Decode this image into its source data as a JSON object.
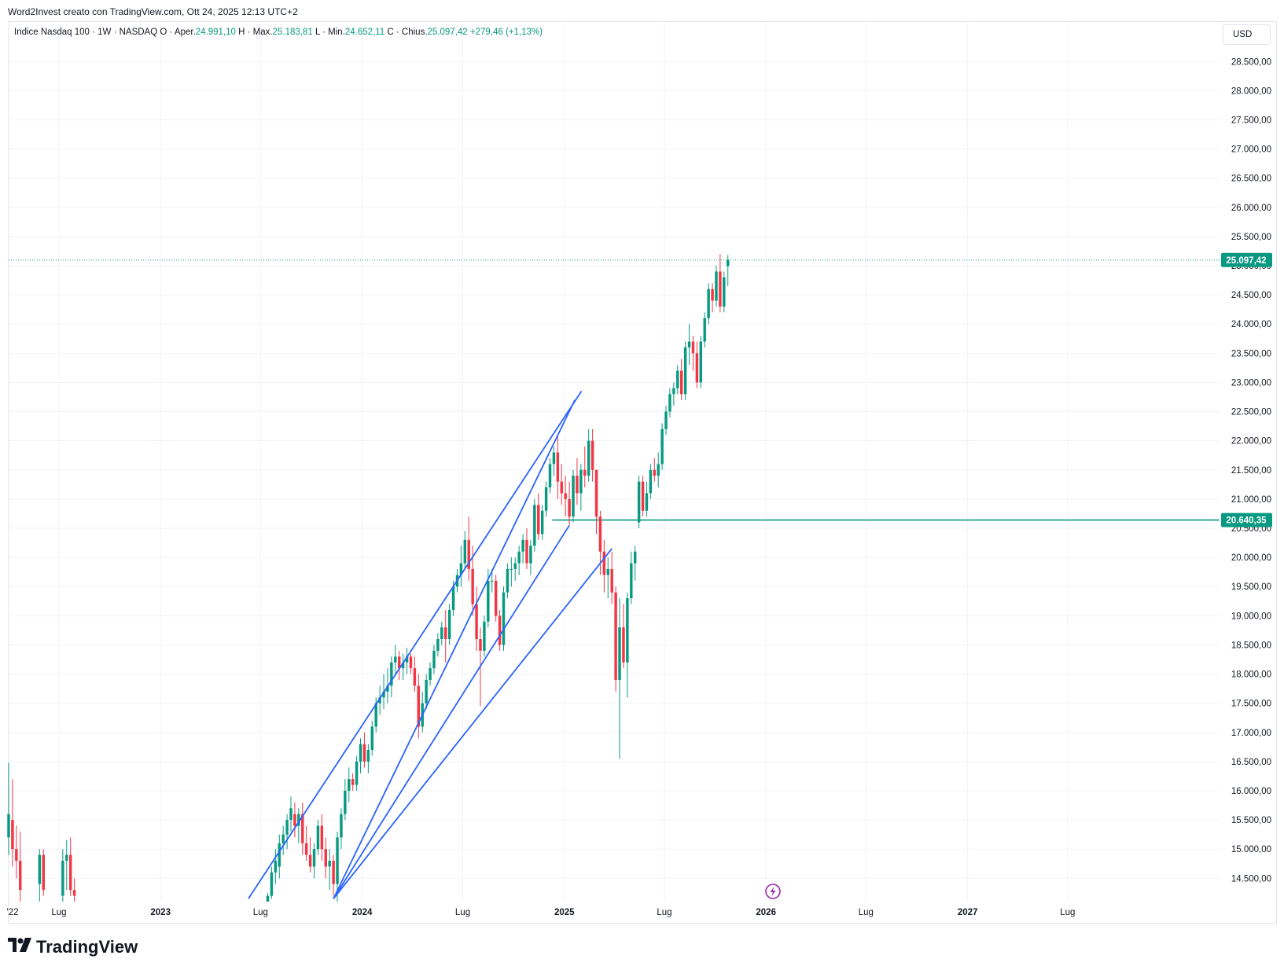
{
  "header": {
    "attribution": "Word2Invest creato con TradingView.com, Ott 24, 2025 12:13 UTC+2"
  },
  "legend": {
    "symbol": "Indice Nasdaq 100 · 1W · NASDAQ",
    "open_label": "O · Aper.",
    "open_value": "24.991,10",
    "high_label": "H · Max.",
    "high_value": "25.183,81",
    "low_label": "L · Min.",
    "low_value": "24.652,11",
    "close_label": "C · Chius.",
    "close_value": "25.097,42",
    "change": "+279,46 (+1,13%)"
  },
  "currency_button": "USD",
  "brand": "TradingView",
  "colors": {
    "up": "#089981",
    "down": "#f23645",
    "trendline": "#2962ff",
    "level": "#089981",
    "grid": "#f0f3fa",
    "text": "#131722",
    "icon": "#9c27b0"
  },
  "chart_data": {
    "type": "candlestick",
    "timeframe": "1W",
    "xlim": [
      "2022-04-01",
      "2028-04-01"
    ],
    "ylim": [
      14100,
      28800
    ],
    "y_ticks": [
      14500,
      15000,
      15500,
      16000,
      16500,
      17000,
      17500,
      18000,
      18500,
      19000,
      19500,
      20000,
      20500,
      21000,
      21500,
      22000,
      22500,
      23000,
      23500,
      24000,
      24500,
      25000,
      25500,
      26000,
      26500,
      27000,
      27500,
      28000,
      28500
    ],
    "y_tick_labels": [
      "14.500,00",
      "15.000,00",
      "15.500,00",
      "16.000,00",
      "16.500,00",
      "17.000,00",
      "17.500,00",
      "18.000,00",
      "18.500,00",
      "19.000,00",
      "19.500,00",
      "20.000,00",
      "20.500,00",
      "21.000,00",
      "21.500,00",
      "22.000,00",
      "22.500,00",
      "23.000,00",
      "23.500,00",
      "24.000,00",
      "24.500,00",
      "25.000,00",
      "25.500,00",
      "26.000,00",
      "26.500,00",
      "27.000,00",
      "27.500,00",
      "28.000,00",
      "28.500,00"
    ],
    "x_ticks": [
      {
        "date": "2022-04-01",
        "label": "'22",
        "bold": false
      },
      {
        "date": "2022-07-01",
        "label": "Lug",
        "bold": false
      },
      {
        "date": "2023-01-01",
        "label": "2023",
        "bold": true
      },
      {
        "date": "2023-07-01",
        "label": "Lug",
        "bold": false
      },
      {
        "date": "2024-01-01",
        "label": "2024",
        "bold": true
      },
      {
        "date": "2024-07-01",
        "label": "Lug",
        "bold": false
      },
      {
        "date": "2025-01-01",
        "label": "2025",
        "bold": true
      },
      {
        "date": "2025-07-01",
        "label": "Lug",
        "bold": false
      },
      {
        "date": "2026-01-01",
        "label": "2026",
        "bold": true
      },
      {
        "date": "2026-07-01",
        "label": "Lug",
        "bold": false
      },
      {
        "date": "2027-01-01",
        "label": "2027",
        "bold": true
      },
      {
        "date": "2027-07-01",
        "label": "Lug",
        "bold": false
      }
    ],
    "candles": [
      [
        "2022-04-01",
        15200,
        16480,
        14900,
        15600
      ],
      [
        "2022-04-08",
        15500,
        16200,
        14700,
        15000
      ],
      [
        "2022-04-15",
        15000,
        15400,
        14500,
        14800
      ],
      [
        "2022-04-22",
        14800,
        15300,
        14100,
        14300
      ],
      [
        "2022-05-27",
        14400,
        15000,
        14100,
        14900
      ],
      [
        "2022-06-03",
        14900,
        15000,
        14200,
        14300
      ],
      [
        "2022-07-08",
        14200,
        15000,
        14100,
        14800
      ],
      [
        "2022-07-15",
        14800,
        15150,
        14300,
        14900
      ],
      [
        "2022-07-22",
        14900,
        15200,
        14200,
        14300
      ],
      [
        "2022-07-29",
        14300,
        14500,
        14100,
        14200
      ],
      [
        "2023-07-14",
        14100,
        14250,
        14100,
        14200
      ],
      [
        "2023-07-21",
        14200,
        14700,
        14150,
        14600
      ],
      [
        "2023-07-28",
        14600,
        15000,
        14400,
        14800
      ],
      [
        "2023-08-04",
        14700,
        15250,
        14500,
        15100
      ],
      [
        "2023-08-11",
        15100,
        15400,
        14900,
        15250
      ],
      [
        "2023-08-18",
        15250,
        15600,
        15000,
        15500
      ],
      [
        "2023-08-25",
        15500,
        15900,
        15300,
        15700
      ],
      [
        "2023-09-01",
        15600,
        15800,
        15200,
        15400
      ],
      [
        "2023-09-08",
        15400,
        15700,
        15100,
        15600
      ],
      [
        "2023-09-15",
        15600,
        15800,
        14900,
        15100
      ],
      [
        "2023-09-22",
        15100,
        15400,
        14800,
        14900
      ],
      [
        "2023-09-29",
        14900,
        15200,
        14600,
        14700
      ],
      [
        "2023-10-06",
        14700,
        15100,
        14500,
        15000
      ],
      [
        "2023-10-13",
        15000,
        15500,
        14900,
        15400
      ],
      [
        "2023-10-20",
        15400,
        15600,
        14800,
        15000
      ],
      [
        "2023-10-27",
        15000,
        15200,
        14500,
        14700
      ],
      [
        "2023-11-03",
        14700,
        15000,
        14300,
        14800
      ],
      [
        "2023-11-10",
        14800,
        14900,
        14200,
        14400
      ],
      [
        "2023-11-17",
        14400,
        15300,
        14100,
        15200
      ],
      [
        "2023-11-24",
        15200,
        15700,
        15000,
        15600
      ],
      [
        "2023-12-01",
        15600,
        16200,
        15500,
        16000
      ],
      [
        "2023-12-08",
        16000,
        16400,
        15800,
        16200
      ],
      [
        "2023-12-15",
        16200,
        16300,
        16000,
        16100
      ],
      [
        "2023-12-22",
        16100,
        16600,
        16000,
        16500
      ],
      [
        "2023-12-29",
        16500,
        16900,
        16300,
        16800
      ],
      [
        "2024-01-05",
        16800,
        17000,
        16400,
        16500
      ],
      [
        "2024-01-12",
        16500,
        16800,
        16300,
        16700
      ],
      [
        "2024-01-19",
        16700,
        17200,
        16600,
        17100
      ],
      [
        "2024-01-26",
        17100,
        17600,
        17000,
        17500
      ],
      [
        "2024-02-02",
        17500,
        17800,
        17300,
        17600
      ],
      [
        "2024-02-09",
        17600,
        18000,
        17400,
        17700
      ],
      [
        "2024-02-16",
        17700,
        18100,
        17500,
        17800
      ],
      [
        "2024-02-23",
        17800,
        18300,
        17600,
        18200
      ],
      [
        "2024-03-01",
        18200,
        18500,
        18000,
        18300
      ],
      [
        "2024-03-08",
        18300,
        18400,
        17900,
        18100
      ],
      [
        "2024-03-15",
        18100,
        18350,
        17900,
        18200
      ],
      [
        "2024-03-22",
        18200,
        18450,
        18000,
        18300
      ],
      [
        "2024-03-29",
        18300,
        18350,
        18000,
        18100
      ],
      [
        "2024-04-05",
        18100,
        18300,
        17700,
        17800
      ],
      [
        "2024-04-12",
        17800,
        18000,
        16900,
        17100
      ],
      [
        "2024-04-19",
        17100,
        17700,
        17000,
        17500
      ],
      [
        "2024-04-26",
        17500,
        18000,
        17400,
        17900
      ],
      [
        "2024-05-03",
        17900,
        18200,
        17800,
        18100
      ],
      [
        "2024-05-10",
        18100,
        18500,
        18000,
        18400
      ],
      [
        "2024-05-17",
        18400,
        18700,
        18300,
        18600
      ],
      [
        "2024-05-24",
        18600,
        18900,
        18500,
        18800
      ],
      [
        "2024-05-31",
        18800,
        19100,
        18200,
        18600
      ],
      [
        "2024-06-07",
        18600,
        19200,
        18500,
        19100
      ],
      [
        "2024-06-14",
        19100,
        19600,
        19000,
        19500
      ],
      [
        "2024-06-21",
        19500,
        19800,
        19400,
        19700
      ],
      [
        "2024-06-28",
        19700,
        20200,
        19500,
        19900
      ],
      [
        "2024-07-05",
        19900,
        20450,
        19800,
        20300
      ],
      [
        "2024-07-12",
        20300,
        20700,
        19600,
        19800
      ],
      [
        "2024-07-19",
        19800,
        20200,
        19000,
        19200
      ],
      [
        "2024-07-26",
        19200,
        19500,
        18400,
        18600
      ],
      [
        "2024-08-02",
        18600,
        18800,
        17450,
        18400
      ],
      [
        "2024-08-09",
        18400,
        19000,
        18300,
        18900
      ],
      [
        "2024-08-16",
        18900,
        19800,
        18800,
        19600
      ],
      [
        "2024-08-23",
        19600,
        19800,
        19400,
        19600
      ],
      [
        "2024-08-30",
        19600,
        19700,
        18900,
        19000
      ],
      [
        "2024-09-06",
        19000,
        19100,
        18400,
        18500
      ],
      [
        "2024-09-13",
        18500,
        19500,
        18400,
        19400
      ],
      [
        "2024-09-20",
        19400,
        19900,
        19300,
        19800
      ],
      [
        "2024-09-27",
        19800,
        20000,
        19500,
        19800
      ],
      [
        "2024-10-04",
        19800,
        20000,
        19600,
        19900
      ],
      [
        "2024-10-11",
        19900,
        20200,
        19700,
        20100
      ],
      [
        "2024-10-18",
        20100,
        20400,
        19900,
        20300
      ],
      [
        "2024-10-25",
        20300,
        20500,
        19800,
        19900
      ],
      [
        "2024-11-01",
        19900,
        20300,
        19700,
        20200
      ],
      [
        "2024-11-08",
        20200,
        21000,
        20100,
        20900
      ],
      [
        "2024-11-15",
        20900,
        21100,
        20300,
        20400
      ],
      [
        "2024-11-22",
        20400,
        20900,
        20300,
        20800
      ],
      [
        "2024-11-29",
        20800,
        21300,
        20700,
        21200
      ],
      [
        "2024-12-06",
        21200,
        21700,
        21100,
        21600
      ],
      [
        "2024-12-13",
        21600,
        21900,
        21400,
        21800
      ],
      [
        "2024-12-20",
        21800,
        22100,
        21000,
        21300
      ],
      [
        "2024-12-27",
        21300,
        21600,
        20900,
        21100
      ],
      [
        "2025-01-03",
        21100,
        21400,
        20700,
        21000
      ],
      [
        "2025-01-10",
        21000,
        21300,
        20550,
        20700
      ],
      [
        "2025-01-17",
        20700,
        21500,
        20600,
        21400
      ],
      [
        "2025-01-24",
        21400,
        21700,
        20900,
        21100
      ],
      [
        "2025-01-31",
        21100,
        21600,
        20800,
        21500
      ],
      [
        "2025-02-07",
        21500,
        21900,
        21200,
        21400
      ],
      [
        "2025-02-14",
        21400,
        22200,
        21300,
        22000
      ],
      [
        "2025-02-21",
        22000,
        22200,
        21300,
        21500
      ],
      [
        "2025-02-28",
        21500,
        21500,
        20400,
        20700
      ],
      [
        "2025-03-07",
        20700,
        20800,
        19700,
        20100
      ],
      [
        "2025-03-14",
        20100,
        20300,
        19400,
        19700
      ],
      [
        "2025-03-21",
        19700,
        20000,
        19300,
        19800
      ],
      [
        "2025-03-28",
        19800,
        20100,
        19200,
        19400
      ],
      [
        "2025-04-04",
        19400,
        19500,
        17700,
        17900
      ],
      [
        "2025-04-11",
        17900,
        19300,
        16550,
        18800
      ],
      [
        "2025-04-18",
        18800,
        19200,
        18100,
        18200
      ],
      [
        "2025-04-25",
        18200,
        19400,
        17600,
        19300
      ],
      [
        "2025-05-02",
        19300,
        20100,
        19200,
        19900
      ],
      [
        "2025-05-09",
        19900,
        20200,
        19600,
        20100
      ],
      [
        "2025-05-16",
        20600,
        21400,
        20500,
        21300
      ],
      [
        "2025-05-23",
        21300,
        21400,
        20700,
        20800
      ],
      [
        "2025-05-30",
        20800,
        21300,
        20700,
        21100
      ],
      [
        "2025-06-06",
        21100,
        21600,
        21000,
        21500
      ],
      [
        "2025-06-13",
        21500,
        21700,
        21300,
        21400
      ],
      [
        "2025-06-20",
        21400,
        21800,
        21200,
        21600
      ],
      [
        "2025-06-27",
        21600,
        22300,
        21500,
        22200
      ],
      [
        "2025-07-04",
        22200,
        22600,
        22100,
        22500
      ],
      [
        "2025-07-11",
        22500,
        22900,
        22400,
        22800
      ],
      [
        "2025-07-18",
        22800,
        23000,
        22600,
        22900
      ],
      [
        "2025-07-25",
        22900,
        23300,
        22800,
        23200
      ],
      [
        "2025-08-01",
        23200,
        23400,
        22700,
        22800
      ],
      [
        "2025-08-08",
        22800,
        23700,
        22700,
        23600
      ],
      [
        "2025-08-15",
        23600,
        24000,
        23300,
        23700
      ],
      [
        "2025-08-22",
        23700,
        23800,
        23200,
        23500
      ],
      [
        "2025-08-29",
        23500,
        23700,
        22900,
        23000
      ],
      [
        "2025-09-05",
        23000,
        23800,
        22900,
        23700
      ],
      [
        "2025-09-12",
        23700,
        24200,
        23600,
        24100
      ],
      [
        "2025-09-19",
        24100,
        24700,
        24000,
        24600
      ],
      [
        "2025-09-26",
        24600,
        24700,
        24200,
        24400
      ],
      [
        "2025-10-03",
        24400,
        25000,
        24300,
        24900
      ],
      [
        "2025-10-10",
        24900,
        25200,
        24200,
        24300
      ],
      [
        "2025-10-17",
        24300,
        24900,
        24200,
        24800
      ],
      [
        "2025-10-24",
        24991,
        25184,
        24652,
        25097
      ]
    ],
    "trendlines": [
      {
        "from": [
          "2023-06-09",
          14150
        ],
        "to": [
          "2025-02-01",
          22850
        ]
      },
      {
        "from": [
          "2023-11-10",
          14150
        ],
        "to": [
          "2025-01-20",
          22700
        ]
      },
      {
        "from": [
          "2023-11-10",
          14150
        ],
        "to": [
          "2025-03-28",
          20150
        ]
      },
      {
        "from": [
          "2023-11-10",
          14150
        ],
        "to": [
          "2025-01-10",
          20550
        ]
      }
    ],
    "horizontal_level": {
      "value": 20640.35,
      "label": "20.640,35",
      "from": "2024-12-10"
    },
    "last_price": {
      "value": 25097.42,
      "label": "25.097,42"
    }
  }
}
